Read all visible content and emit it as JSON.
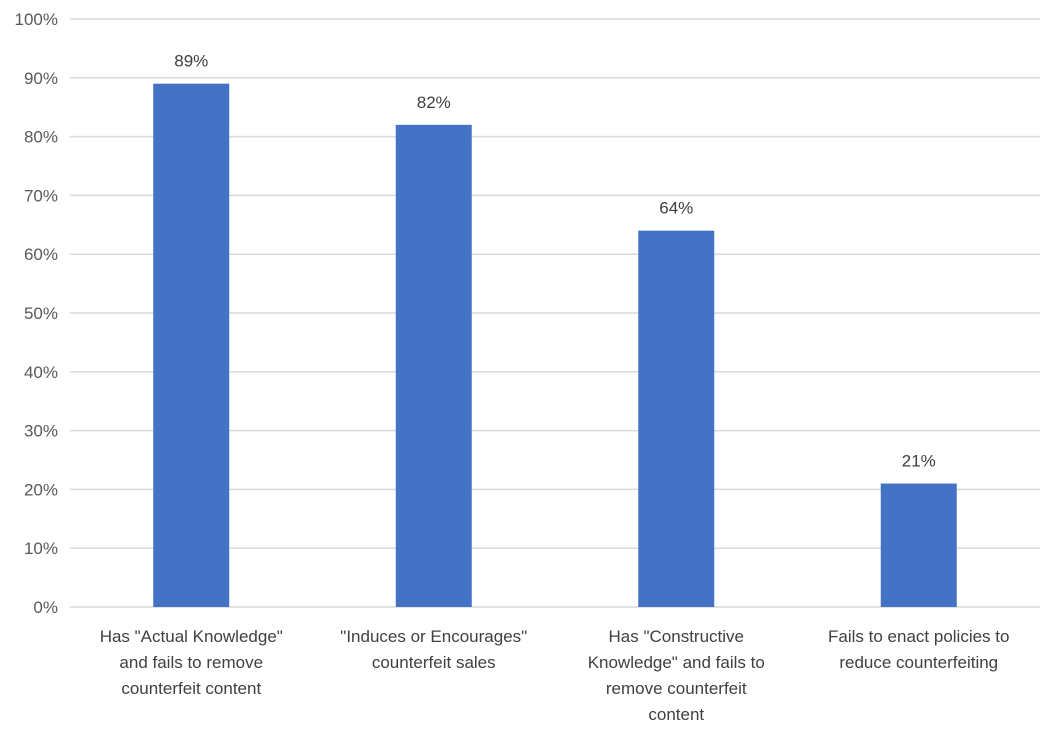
{
  "chart_data": {
    "type": "bar",
    "categories": [
      "Has \"Actual Knowledge\" and fails to remove counterfeit content",
      "\"Induces or Encourages\" counterfeit sales",
      "Has \"Constructive Knowledge\" and fails to remove counterfeit content",
      "Fails to enact  policies to reduce counterfeiting"
    ],
    "category_lines": [
      [
        "Has \"Actual Knowledge\"",
        "and fails to remove",
        "counterfeit content"
      ],
      [
        "\"Induces or Encourages\"",
        "counterfeit sales"
      ],
      [
        "Has \"Constructive",
        "Knowledge\" and fails to",
        "remove counterfeit",
        "content"
      ],
      [
        "Fails to enact  policies to",
        "reduce counterfeiting"
      ]
    ],
    "values": [
      89,
      82,
      64,
      21
    ],
    "data_labels": [
      "89%",
      "82%",
      "64%",
      "21%"
    ],
    "ylim": [
      0,
      100
    ],
    "yticks": [
      0,
      10,
      20,
      30,
      40,
      50,
      60,
      70,
      80,
      90,
      100
    ],
    "ytick_labels": [
      "0%",
      "10%",
      "20%",
      "30%",
      "40%",
      "50%",
      "60%",
      "70%",
      "80%",
      "90%",
      "100%"
    ],
    "title": "",
    "xlabel": "",
    "ylabel": "",
    "grid": true,
    "legend": "none",
    "bar_color": "#4472c4",
    "grid_color": "#d9d9d9"
  }
}
